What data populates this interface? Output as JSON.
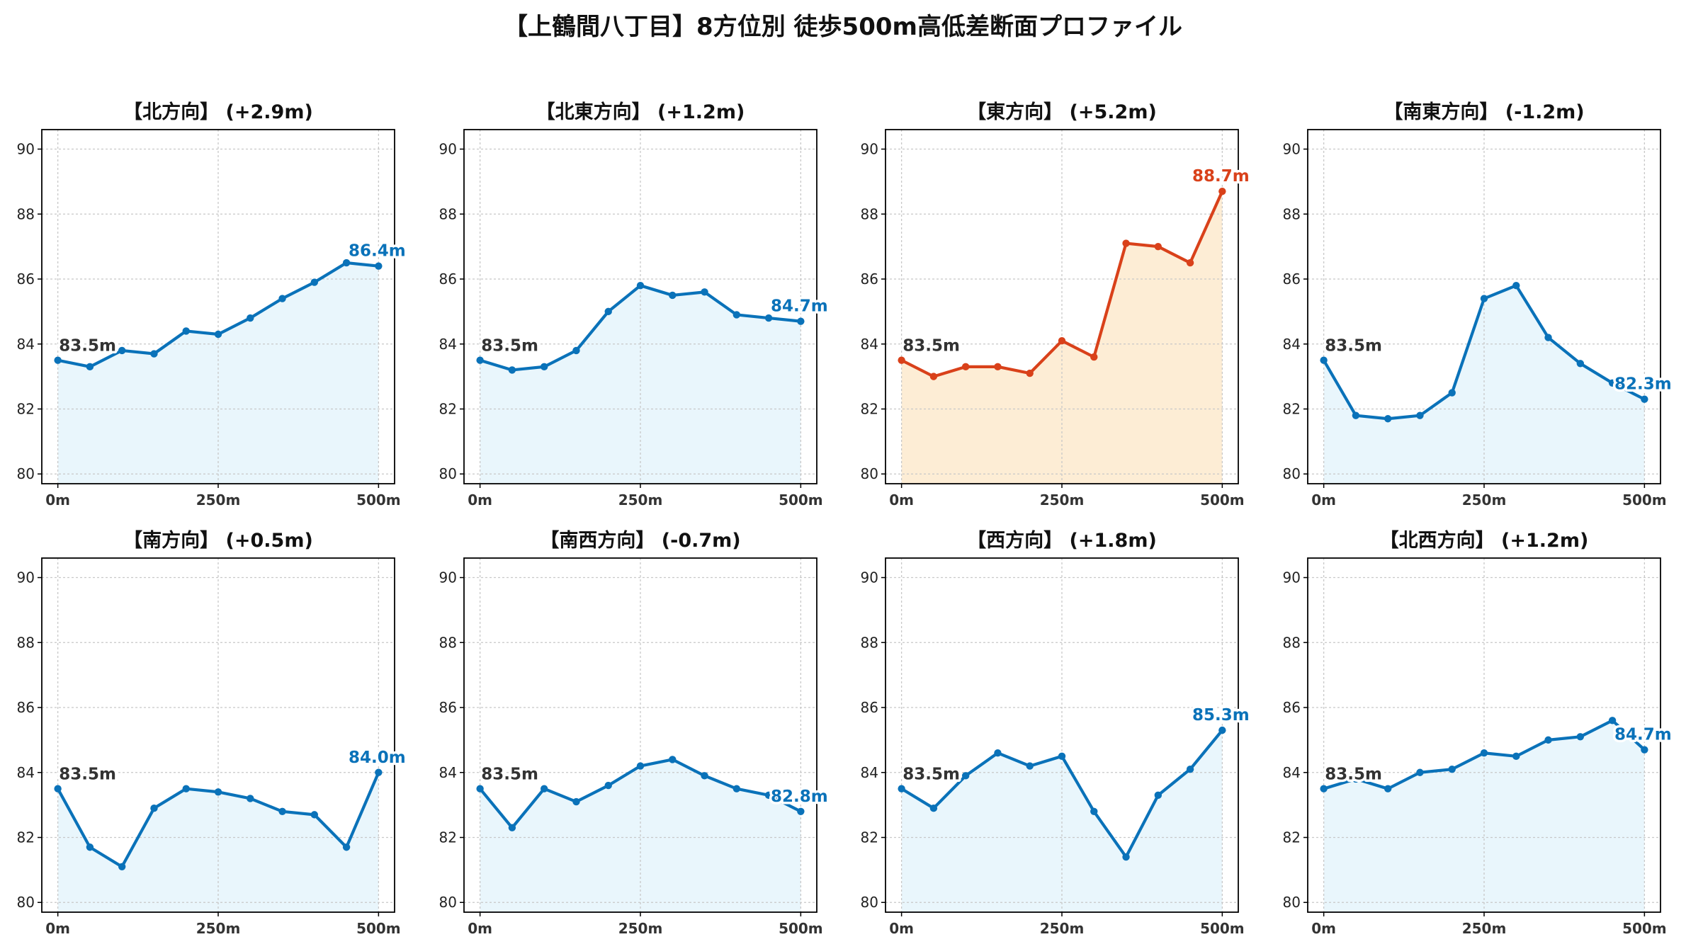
{
  "title": "【上鶴間八丁目】8方位別 徒歩500m高低差断面プロファイル",
  "colors": {
    "normal_line": "#0a72b9",
    "normal_fill": "#e9f6fc",
    "highlight_line": "#d9411a",
    "highlight_fill": "#fdedd5",
    "start_label": "#333333"
  },
  "chart_data": [
    {
      "type": "line",
      "title": "【北方向】 (+2.9m)",
      "highlight": false,
      "x": [
        0,
        50,
        100,
        150,
        200,
        250,
        300,
        350,
        400,
        450,
        500
      ],
      "y": [
        83.5,
        83.3,
        83.8,
        83.7,
        84.4,
        84.3,
        84.8,
        85.4,
        85.9,
        86.5,
        86.4
      ],
      "start_label": "83.5m",
      "end_label": "86.4m",
      "xticks": [
        "0m",
        "250m",
        "500m"
      ],
      "yticks": [
        "80",
        "82",
        "84",
        "86",
        "88",
        "90"
      ],
      "ylim": [
        79.7,
        90.6
      ],
      "grid": true
    },
    {
      "type": "line",
      "title": "【北東方向】 (+1.2m)",
      "highlight": false,
      "x": [
        0,
        50,
        100,
        150,
        200,
        250,
        300,
        350,
        400,
        450,
        500
      ],
      "y": [
        83.5,
        83.2,
        83.3,
        83.8,
        85.0,
        85.8,
        85.5,
        85.6,
        84.9,
        84.8,
        84.7
      ],
      "start_label": "83.5m",
      "end_label": "84.7m",
      "xticks": [
        "0m",
        "250m",
        "500m"
      ],
      "yticks": [
        "80",
        "82",
        "84",
        "86",
        "88",
        "90"
      ],
      "ylim": [
        79.7,
        90.6
      ],
      "grid": true
    },
    {
      "type": "line",
      "title": "【東方向】 (+5.2m)",
      "highlight": true,
      "x": [
        0,
        50,
        100,
        150,
        200,
        250,
        300,
        350,
        400,
        450,
        500
      ],
      "y": [
        83.5,
        83.0,
        83.3,
        83.3,
        83.1,
        84.1,
        83.6,
        87.1,
        87.0,
        86.5,
        88.7
      ],
      "start_label": "83.5m",
      "end_label": "88.7m",
      "xticks": [
        "0m",
        "250m",
        "500m"
      ],
      "yticks": [
        "80",
        "82",
        "84",
        "86",
        "88",
        "90"
      ],
      "ylim": [
        79.7,
        90.6
      ],
      "grid": true
    },
    {
      "type": "line",
      "title": "【南東方向】 (-1.2m)",
      "highlight": false,
      "x": [
        0,
        50,
        100,
        150,
        200,
        250,
        300,
        350,
        400,
        450,
        500
      ],
      "y": [
        83.5,
        81.8,
        81.7,
        81.8,
        82.5,
        85.4,
        85.8,
        84.2,
        83.4,
        82.8,
        82.3
      ],
      "start_label": "83.5m",
      "end_label": "82.3m",
      "xticks": [
        "0m",
        "250m",
        "500m"
      ],
      "yticks": [
        "80",
        "82",
        "84",
        "86",
        "88",
        "90"
      ],
      "ylim": [
        79.7,
        90.6
      ],
      "grid": true
    },
    {
      "type": "line",
      "title": "【南方向】 (+0.5m)",
      "highlight": false,
      "x": [
        0,
        50,
        100,
        150,
        200,
        250,
        300,
        350,
        400,
        450,
        500
      ],
      "y": [
        83.5,
        81.7,
        81.1,
        82.9,
        83.5,
        83.4,
        83.2,
        82.8,
        82.7,
        81.7,
        84.0
      ],
      "start_label": "83.5m",
      "end_label": "84.0m",
      "xticks": [
        "0m",
        "250m",
        "500m"
      ],
      "yticks": [
        "80",
        "82",
        "84",
        "86",
        "88",
        "90"
      ],
      "ylim": [
        79.7,
        90.6
      ],
      "grid": true
    },
    {
      "type": "line",
      "title": "【南西方向】 (-0.7m)",
      "highlight": false,
      "x": [
        0,
        50,
        100,
        150,
        200,
        250,
        300,
        350,
        400,
        450,
        500
      ],
      "y": [
        83.5,
        82.3,
        83.5,
        83.1,
        83.6,
        84.2,
        84.4,
        83.9,
        83.5,
        83.3,
        82.8
      ],
      "start_label": "83.5m",
      "end_label": "82.8m",
      "xticks": [
        "0m",
        "250m",
        "500m"
      ],
      "yticks": [
        "80",
        "82",
        "84",
        "86",
        "88",
        "90"
      ],
      "ylim": [
        79.7,
        90.6
      ],
      "grid": true
    },
    {
      "type": "line",
      "title": "【西方向】 (+1.8m)",
      "highlight": false,
      "x": [
        0,
        50,
        100,
        150,
        200,
        250,
        300,
        350,
        400,
        450,
        500
      ],
      "y": [
        83.5,
        82.9,
        83.9,
        84.6,
        84.2,
        84.5,
        82.8,
        81.4,
        83.3,
        84.1,
        85.3
      ],
      "start_label": "83.5m",
      "end_label": "85.3m",
      "xticks": [
        "0m",
        "250m",
        "500m"
      ],
      "yticks": [
        "80",
        "82",
        "84",
        "86",
        "88",
        "90"
      ],
      "ylim": [
        79.7,
        90.6
      ],
      "grid": true
    },
    {
      "type": "line",
      "title": "【北西方向】 (+1.2m)",
      "highlight": false,
      "x": [
        0,
        50,
        100,
        150,
        200,
        250,
        300,
        350,
        400,
        450,
        500
      ],
      "y": [
        83.5,
        83.8,
        83.5,
        84.0,
        84.1,
        84.6,
        84.5,
        85.0,
        85.1,
        85.6,
        84.7
      ],
      "start_label": "83.5m",
      "end_label": "84.7m",
      "xticks": [
        "0m",
        "250m",
        "500m"
      ],
      "yticks": [
        "80",
        "82",
        "84",
        "86",
        "88",
        "90"
      ],
      "ylim": [
        79.7,
        90.6
      ],
      "grid": true
    }
  ]
}
